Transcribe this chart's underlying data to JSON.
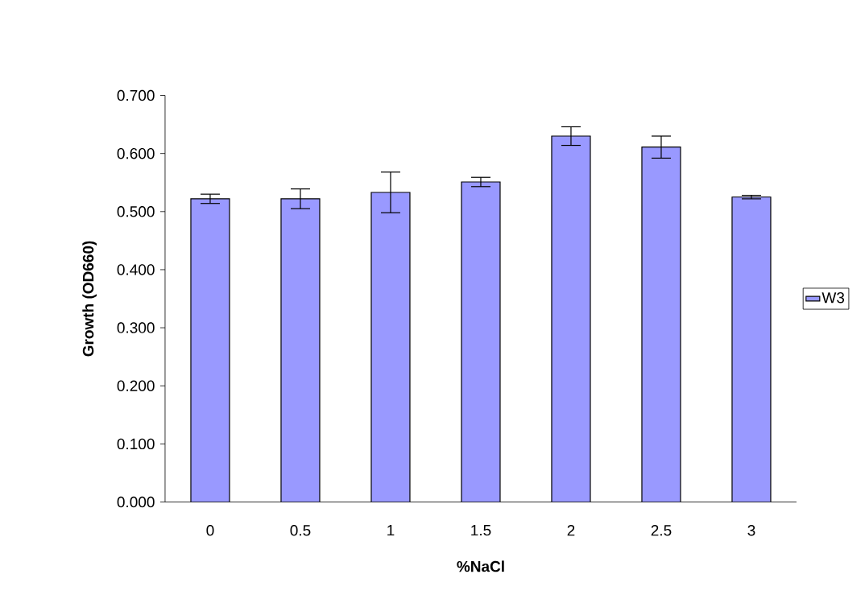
{
  "chart_data": {
    "type": "bar",
    "xlabel": "%NaCl",
    "ylabel": "Growth (OD660)",
    "categories": [
      "0",
      "0.5",
      "1",
      "1.5",
      "2",
      "2.5",
      "3"
    ],
    "series": [
      {
        "name": "W3",
        "color": "#9999ff",
        "values": [
          0.522,
          0.522,
          0.533,
          0.551,
          0.63,
          0.611,
          0.525
        ],
        "errors": [
          0.008,
          0.017,
          0.035,
          0.008,
          0.016,
          0.019,
          0.003
        ]
      }
    ],
    "ylim": [
      0,
      0.7
    ],
    "yticks": [
      {
        "value": 0,
        "label": "0.000"
      },
      {
        "value": 0.1,
        "label": "0.100"
      },
      {
        "value": 0.2,
        "label": "0.200"
      },
      {
        "value": 0.3,
        "label": "0.300"
      },
      {
        "value": 0.4,
        "label": "0.400"
      },
      {
        "value": 0.5,
        "label": "0.500"
      },
      {
        "value": 0.6,
        "label": "0.600"
      },
      {
        "value": 0.7,
        "label": "0.700"
      }
    ],
    "grid": false,
    "legend": "right"
  }
}
